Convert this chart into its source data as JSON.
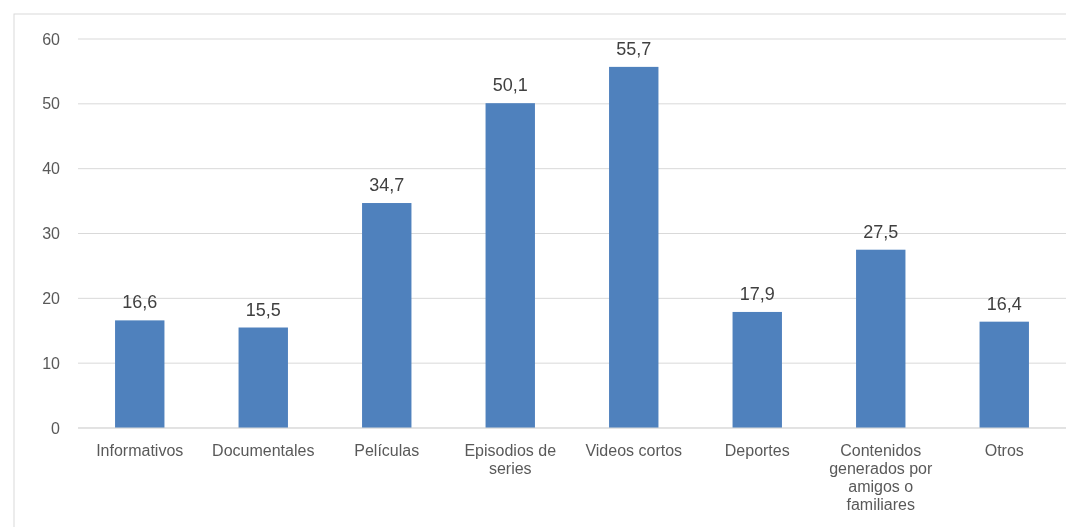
{
  "chart_data": {
    "type": "bar",
    "categories": [
      "Informativos",
      "Documentales",
      "Películas",
      "Episodios de series",
      "Videos cortos",
      "Deportes",
      "Contenidos generados por amigos o familiares",
      "Otros"
    ],
    "values": [
      16.6,
      15.5,
      34.7,
      50.1,
      55.7,
      17.9,
      27.5,
      16.4
    ],
    "value_labels": [
      "16,6",
      "15,5",
      "34,7",
      "50,1",
      "55,7",
      "17,9",
      "27,5",
      "16,4"
    ],
    "color": "#4f81bd",
    "ylim": [
      0,
      60
    ],
    "yticks": [
      0,
      10,
      20,
      30,
      40,
      50,
      60
    ],
    "grid": "y"
  }
}
